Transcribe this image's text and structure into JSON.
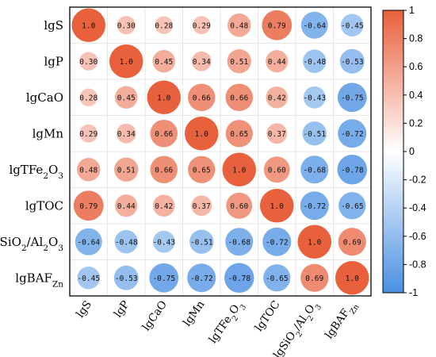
{
  "chart_data": {
    "type": "heatmap",
    "variables": [
      {
        "base": "lgS",
        "sub": null
      },
      {
        "base": "lgP",
        "sub": null
      },
      {
        "base": "lgCaO",
        "sub": null
      },
      {
        "base": "lgMn",
        "sub": null
      },
      {
        "base": "lgTFe2O3",
        "sub": null
      },
      {
        "base": "lgTOC",
        "sub": null
      },
      {
        "base": "lgSiO2/Al2O3",
        "sub": null
      },
      {
        "base": "lgBAF",
        "sub": "Zn"
      }
    ],
    "matrix": [
      [
        1.0,
        0.3,
        0.28,
        0.29,
        0.48,
        0.79,
        -0.64,
        -0.45
      ],
      [
        0.3,
        1.0,
        0.45,
        0.34,
        0.51,
        0.44,
        -0.48,
        -0.53
      ],
      [
        0.28,
        0.45,
        1.0,
        0.66,
        0.66,
        0.42,
        -0.43,
        -0.75
      ],
      [
        0.29,
        0.34,
        0.66,
        1.0,
        0.65,
        0.37,
        -0.51,
        -0.72
      ],
      [
        0.48,
        0.51,
        0.66,
        0.65,
        1.0,
        0.6,
        -0.68,
        -0.78
      ],
      [
        0.79,
        0.44,
        0.42,
        0.37,
        0.6,
        1.0,
        -0.72,
        -0.65
      ],
      [
        -0.64,
        -0.48,
        -0.43,
        -0.51,
        -0.68,
        -0.72,
        1.0,
        0.69
      ],
      [
        -0.45,
        -0.53,
        -0.75,
        -0.72,
        -0.78,
        -0.65,
        0.69,
        1.0
      ]
    ],
    "colorbar": {
      "min": -1,
      "max": 1,
      "ticks": [
        "1",
        "0.8",
        "0.6",
        "0.4",
        "0.2",
        "0",
        "-0.2",
        "-0.4",
        "-0.6",
        "-0.8",
        "-1"
      ],
      "positive_color": "#e8603c",
      "negative_color": "#4a90e2"
    }
  }
}
